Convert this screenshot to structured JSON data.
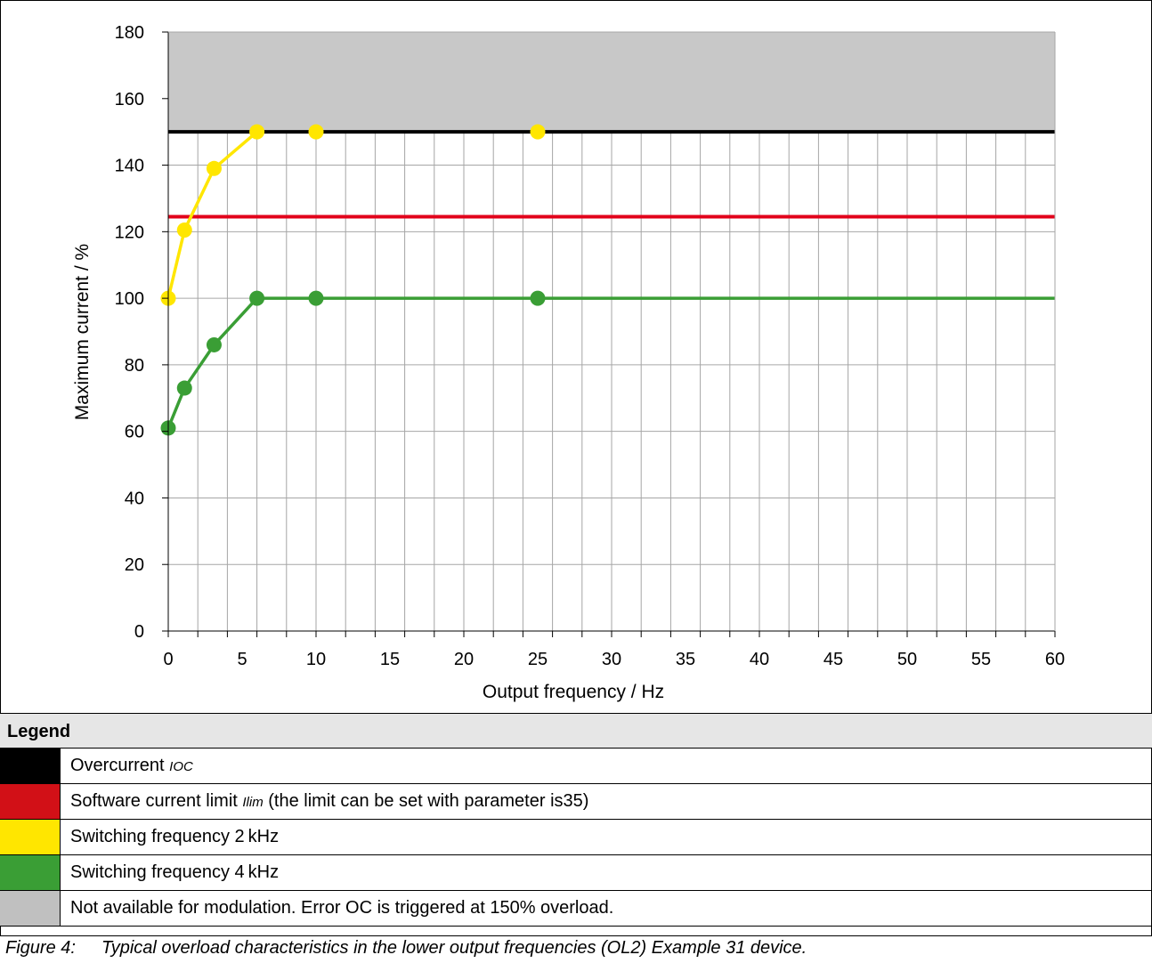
{
  "chart_data": {
    "type": "line",
    "xlabel": "Output frequency / Hz",
    "ylabel": "Maximum current / %",
    "xlim": [
      0,
      60
    ],
    "ylim": [
      0,
      180
    ],
    "x_ticks": [
      0,
      5,
      10,
      15,
      20,
      25,
      30,
      35,
      40,
      45,
      50,
      55,
      60
    ],
    "y_ticks": [
      0,
      20,
      40,
      60,
      80,
      100,
      120,
      140,
      160,
      180
    ],
    "x_tick_labels": [
      "0",
      "5",
      "10",
      "15",
      "20",
      "25",
      "30",
      "35",
      "40",
      "45",
      "50",
      "55",
      "60"
    ],
    "y_tick_labels": [
      "0",
      "20",
      "40",
      "60",
      "80",
      "100",
      "120",
      "140",
      "160",
      "180"
    ],
    "x_minor_step": 2,
    "y_minor_step": 20,
    "grid": true,
    "shaded_region": {
      "y_from": 150,
      "y_to": 180,
      "color": "#c8c8c8"
    },
    "reference_lines": [
      {
        "y": 150,
        "color": "#000000"
      },
      {
        "y": 124.5,
        "color": "#e2001a"
      }
    ],
    "series": [
      {
        "color": "#ffe600",
        "x": [
          0,
          1.1,
          3.1,
          6,
          10,
          25
        ],
        "y": [
          100,
          120.5,
          139,
          150,
          150,
          150
        ],
        "connected_points": 4
      },
      {
        "color": "#3a9e35",
        "x": [
          0,
          1.1,
          3.1,
          6,
          10,
          25
        ],
        "y": [
          61,
          73,
          86,
          100,
          100,
          100
        ],
        "line_to_x": 60,
        "connected_points": 6
      }
    ]
  },
  "legend": {
    "title": "Legend",
    "items": [
      {
        "color": "#000000",
        "text": "Overcurrent ",
        "sub": "IOC",
        "tail": ""
      },
      {
        "color": "#d21017",
        "text": "Software current limit ",
        "sub": "Ilim",
        "tail": " (the limit can be set with parameter is35)"
      },
      {
        "color": "#ffe600",
        "text": "Switching frequency 2 kHz",
        "sub": "",
        "tail": ""
      },
      {
        "color": "#3a9e35",
        "text": "Switching frequency 4 kHz",
        "sub": "",
        "tail": ""
      },
      {
        "color": "#c0c0c0",
        "text": "Not available for modulation. Error OC is triggered at 150% overload.",
        "sub": "",
        "tail": ""
      }
    ]
  },
  "caption": {
    "label": "Figure 4:",
    "text": "Typical overload characteristics in the lower output frequencies (OL2) Example 31 device."
  }
}
